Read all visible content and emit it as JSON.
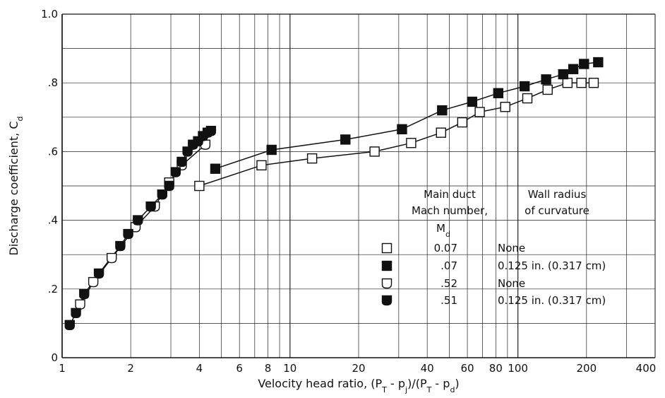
{
  "chart_data": {
    "type": "scatter",
    "title": "",
    "xlabel": "Velocity head ratio, (P_T - p_j)/(P_T - p_d)",
    "ylabel": "Discharge coefficient, C_d",
    "x_scale": "log",
    "xlim": [
      1,
      400
    ],
    "ylim": [
      0,
      1.0
    ],
    "grid": true,
    "x_ticks": [
      {
        "value": 1,
        "label": "1"
      },
      {
        "value": 2,
        "label": "2"
      },
      {
        "value": 4,
        "label": "4"
      },
      {
        "value": 6,
        "label": "6"
      },
      {
        "value": 8,
        "label": "8"
      },
      {
        "value": 10,
        "label": "10"
      },
      {
        "value": 20,
        "label": "20"
      },
      {
        "value": 40,
        "label": "40"
      },
      {
        "value": 60,
        "label": "60"
      },
      {
        "value": 80,
        "label": "80"
      },
      {
        "value": 100,
        "label": "100"
      },
      {
        "value": 200,
        "label": "200"
      },
      {
        "value": 400,
        "label": "400"
      }
    ],
    "y_ticks": [
      {
        "value": 0,
        "label": "0"
      },
      {
        "value": 0.2,
        "label": ".2"
      },
      {
        "value": 0.4,
        "label": ".4"
      },
      {
        "value": 0.6,
        "label": ".6"
      },
      {
        "value": 0.8,
        "label": ".8"
      },
      {
        "value": 1.0,
        "label": "1.0"
      }
    ],
    "legend": {
      "placement": "lower-right",
      "header_col1": [
        "Main duct",
        "Mach number,",
        "M_d"
      ],
      "header_col2": [
        "Wall radius",
        "of curvature"
      ],
      "entries": [
        {
          "mach": "0.07",
          "curvature": "None",
          "marker": "open-square"
        },
        {
          "mach": ".07",
          "curvature": "0.125 in. (0.317 cm)",
          "marker": "filled-square"
        },
        {
          "mach": ".52",
          "curvature": "None",
          "marker": "open-flag"
        },
        {
          "mach": ".51",
          "curvature": "0.125 in. (0.317 cm)",
          "marker": "filled-flag"
        }
      ]
    },
    "series": [
      {
        "marker": "open-square",
        "x": [
          4.0,
          7.5,
          12.5,
          23.5,
          34.0,
          46.0,
          57.0,
          68.0,
          88.0,
          110.0,
          135.0,
          165.0,
          190.0,
          215.0
        ],
        "y": [
          0.5,
          0.56,
          0.58,
          0.6,
          0.625,
          0.655,
          0.685,
          0.715,
          0.73,
          0.755,
          0.78,
          0.8,
          0.8,
          0.8
        ]
      },
      {
        "marker": "filled-square",
        "x": [
          4.7,
          8.3,
          17.5,
          31.0,
          46.5,
          63.0,
          82.0,
          107.0,
          133.0,
          158.0,
          175.0,
          195.0,
          225.0
        ],
        "y": [
          0.55,
          0.605,
          0.635,
          0.665,
          0.72,
          0.745,
          0.77,
          0.79,
          0.81,
          0.825,
          0.84,
          0.855,
          0.86
        ]
      },
      {
        "marker": "open-flag",
        "x": [
          1.2,
          1.37,
          1.65,
          2.1,
          2.55,
          2.95,
          3.35,
          4.25
        ],
        "y": [
          0.155,
          0.22,
          0.29,
          0.38,
          0.44,
          0.51,
          0.56,
          0.62
        ]
      },
      {
        "marker": "filled-flag",
        "x": [
          1.08,
          1.15,
          1.25,
          1.45,
          1.8,
          1.95,
          2.15,
          2.45,
          2.75,
          2.95,
          3.15,
          3.35,
          3.55,
          3.75,
          3.95,
          4.15,
          4.35,
          4.5
        ],
        "y": [
          0.095,
          0.13,
          0.185,
          0.245,
          0.325,
          0.36,
          0.4,
          0.44,
          0.475,
          0.5,
          0.54,
          0.57,
          0.6,
          0.62,
          0.63,
          0.645,
          0.655,
          0.66
        ]
      }
    ]
  }
}
